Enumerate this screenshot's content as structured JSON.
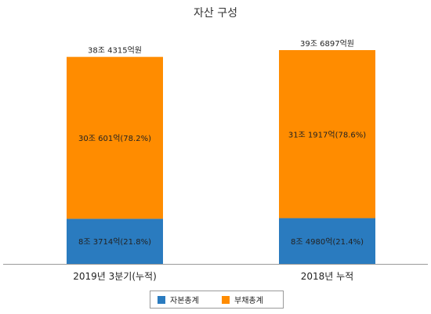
{
  "chart_data": {
    "type": "bar",
    "stacked": true,
    "title": "자산 구성",
    "categories": [
      "2019년 3분기(누적)",
      "2018년 누적"
    ],
    "unit": "억원",
    "series": [
      {
        "name": "자본총계",
        "color": "#2a7bbf",
        "values": [
          83714,
          84980
        ],
        "labels": [
          "8조 3714억(21.8%)",
          "8조 4980억(21.4%)"
        ]
      },
      {
        "name": "부채총계",
        "color": "#ff8c00",
        "values": [
          300601,
          311917
        ],
        "labels": [
          "30조 601억(78.2%)",
          "31조 1917억(78.6%)"
        ]
      }
    ],
    "totals": [
      384315,
      396897
    ],
    "total_labels": [
      "38조 4315억원",
      "39조 6897억원"
    ],
    "ylim": [
      0,
      396897
    ],
    "grid": false,
    "legend_position": "bottom"
  }
}
